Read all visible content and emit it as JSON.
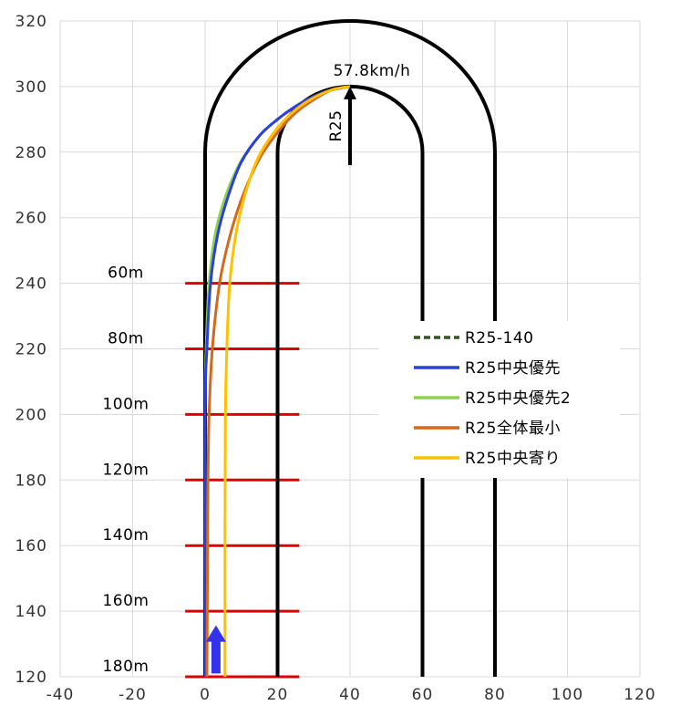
{
  "chart_data": {
    "type": "line",
    "title": "",
    "xlabel": "",
    "ylabel": "",
    "xlim": [
      -40,
      120
    ],
    "ylim": [
      120,
      320
    ],
    "x_ticks": [
      -40,
      -20,
      0,
      20,
      40,
      60,
      80,
      100,
      120
    ],
    "y_ticks": [
      120,
      140,
      160,
      180,
      200,
      220,
      240,
      260,
      280,
      300,
      320
    ],
    "x_tick_labels": [
      "-40",
      "-20",
      "0",
      "20",
      "40",
      "60",
      "80",
      "100",
      "120"
    ],
    "y_tick_labels": [
      "120",
      "140",
      "160",
      "180",
      "200",
      "220",
      "240",
      "260",
      "280",
      "300",
      "320"
    ],
    "grid": true,
    "legend_position": "right-center",
    "track": {
      "color": "#000000",
      "outer_left_x": 0,
      "outer_right_x": 80,
      "outer_center_x": 40,
      "outer_straight_top_y": 280,
      "outer_radius": 40,
      "inner_left_x": 20,
      "inner_right_x": 60,
      "inner_center_x": 40,
      "inner_straight_top_y": 280,
      "inner_radius": 20,
      "bottom_y": 120
    },
    "distance_markers": {
      "color": "#e00000",
      "x_from": -5.5,
      "x_to": 26,
      "items": [
        {
          "y": 240,
          "label": "60m"
        },
        {
          "y": 220,
          "label": "80m"
        },
        {
          "y": 200,
          "label": "100m"
        },
        {
          "y": 180,
          "label": "120m"
        },
        {
          "y": 160,
          "label": "140m"
        },
        {
          "y": 140,
          "label": "160m"
        },
        {
          "y": 120,
          "label": "180m"
        }
      ]
    },
    "annotations": {
      "speed_label": "57.8km/h",
      "radius_label": "R25",
      "radius_arrow": {
        "x": 40,
        "y_from": 276,
        "y_to": 300
      },
      "direction_arrow": {
        "x": 3,
        "y_from": 121,
        "y_to": 134,
        "color": "#3333ee"
      }
    },
    "series": [
      {
        "name": "R25-140",
        "color": "#375623",
        "dash": true,
        "x": [
          0,
          0,
          0.3,
          1.2,
          3,
          6,
          10,
          15,
          20,
          25,
          30,
          35,
          40
        ],
        "y": [
          120,
          200,
          220,
          240,
          255,
          267,
          277,
          285,
          290,
          294,
          297,
          299,
          300
        ]
      },
      {
        "name": "R25中央優先",
        "color": "#2b3fe0",
        "x": [
          0,
          0,
          0.5,
          1.5,
          3.5,
          6.5,
          10,
          15,
          20,
          25,
          30,
          35,
          40
        ],
        "y": [
          120,
          200,
          220,
          240,
          255,
          267,
          277,
          285,
          290,
          294,
          297,
          299,
          300
        ]
      },
      {
        "name": "R25中央優先2",
        "color": "#8fd14f",
        "x": [
          0,
          0,
          0.3,
          1.1,
          2.8,
          5.8,
          9.8,
          15,
          20,
          25,
          30,
          35,
          40
        ],
        "y": [
          120,
          200,
          220,
          240,
          255,
          267,
          277,
          285,
          290,
          294,
          297,
          299,
          300
        ]
      },
      {
        "name": "R25全体最小",
        "color": "#d2691e",
        "x": [
          0.5,
          0.8,
          1.1,
          2,
          4,
          7,
          10.5,
          15,
          20,
          25,
          30,
          35,
          40
        ],
        "y": [
          120,
          180,
          200,
          220,
          240,
          255,
          267,
          278,
          286,
          292,
          296,
          299,
          300
        ]
      },
      {
        "name": "R25中央寄り",
        "color": "#ffc000",
        "x": [
          5.5,
          5.5,
          5.6,
          6,
          6.8,
          8.5,
          11,
          14.5,
          19,
          24,
          29,
          35,
          40
        ],
        "y": [
          120,
          160,
          200,
          220,
          240,
          255,
          267,
          278,
          286,
          292,
          296,
          299,
          300
        ]
      }
    ]
  }
}
